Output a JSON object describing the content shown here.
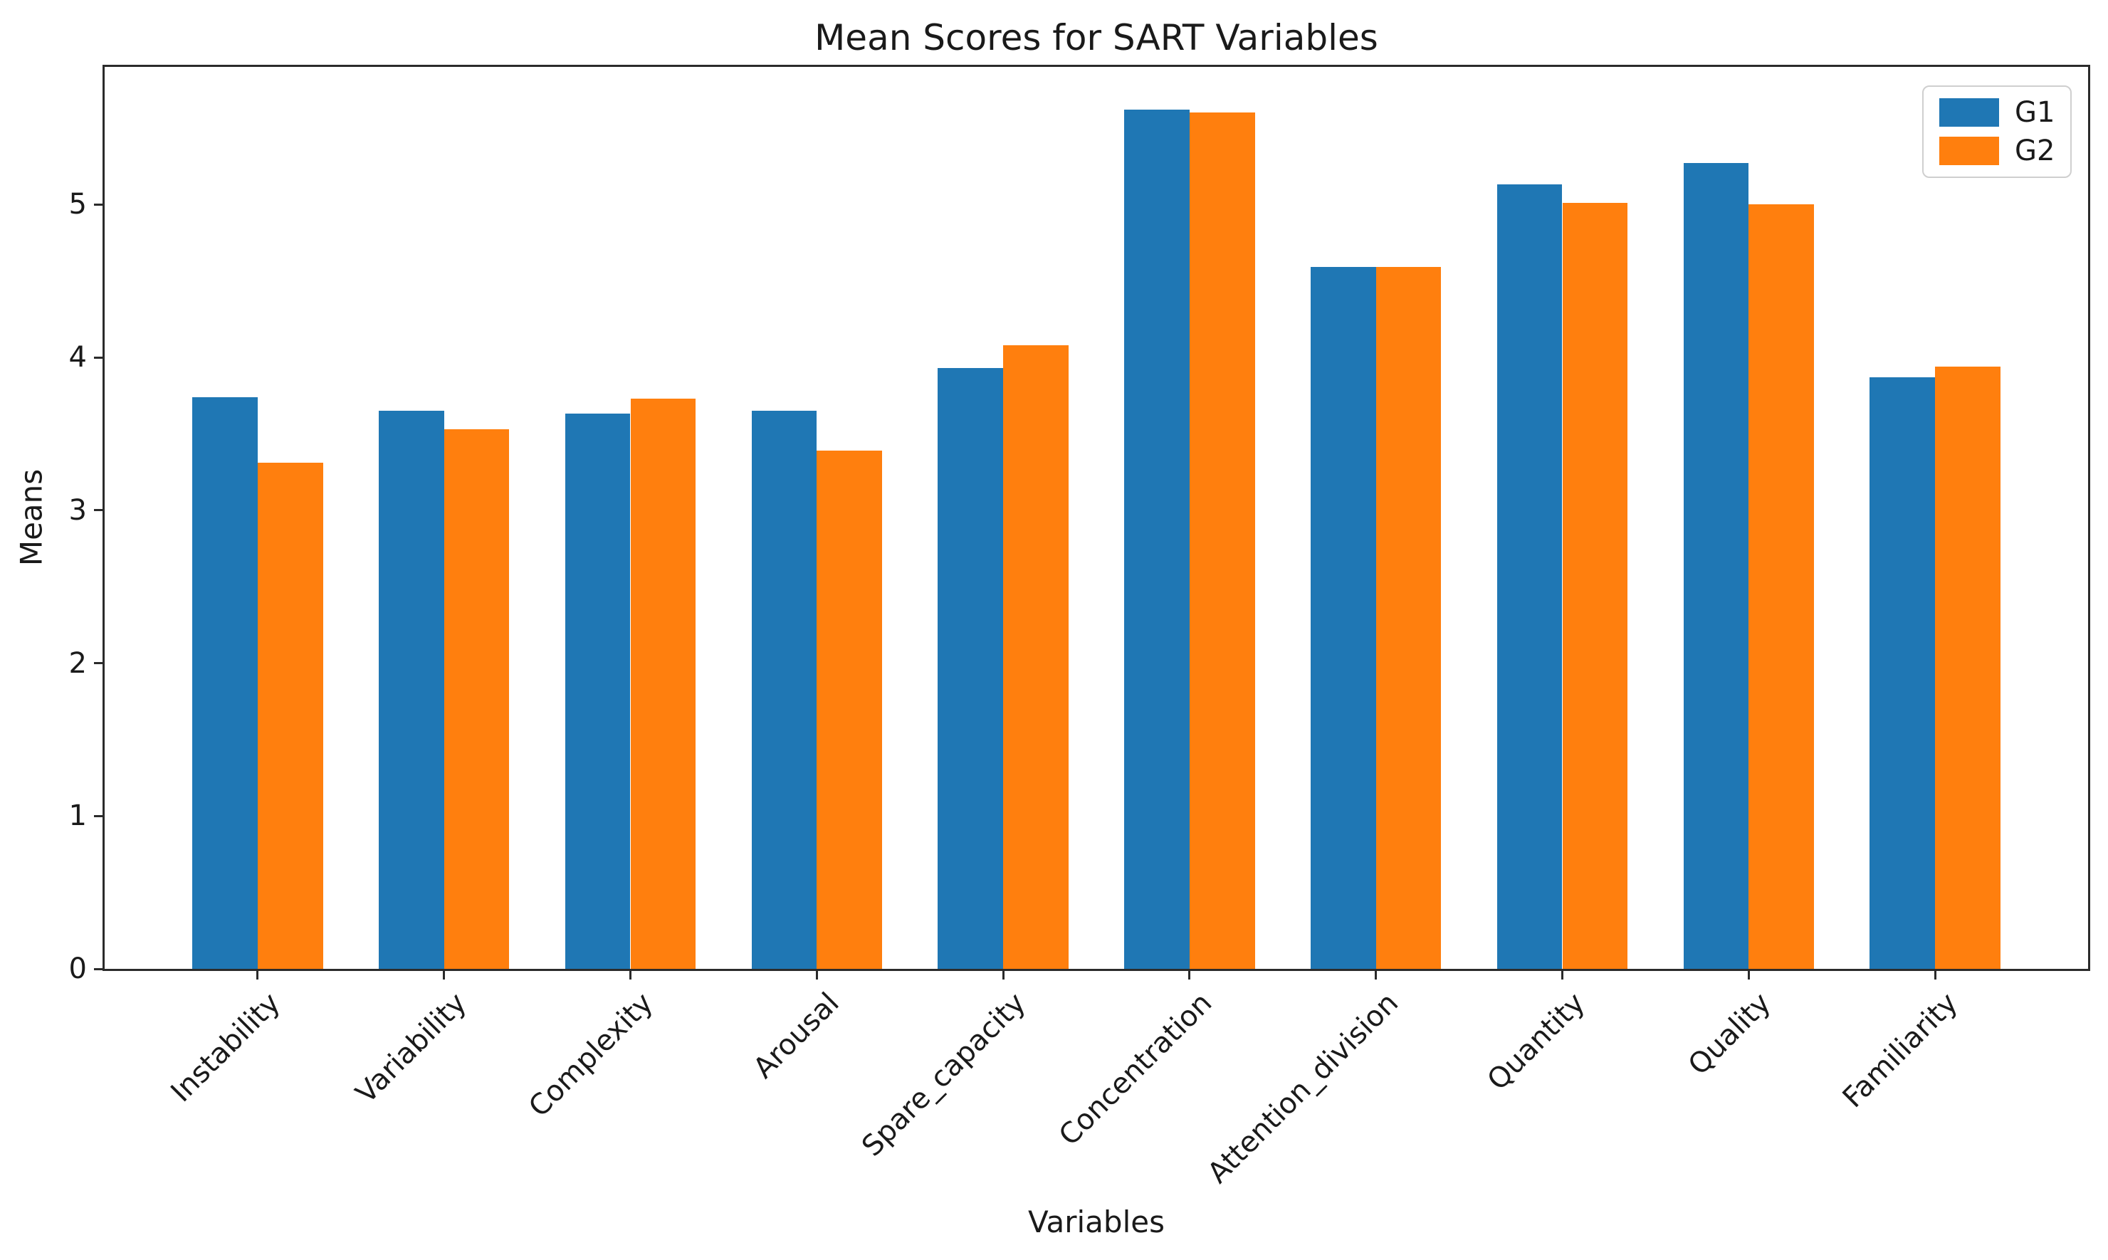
{
  "chart_data": {
    "type": "bar",
    "title": "Mean Scores for SART Variables",
    "xlabel": "Variables",
    "ylabel": "Means",
    "categories": [
      "Instability",
      "Variability",
      "Complexity",
      "Arousal",
      "Spare_capacity",
      "Concentration",
      "Attention_division",
      "Quantity",
      "Quality",
      "Familiarity"
    ],
    "series": [
      {
        "name": "G1",
        "color": "#1f77b4",
        "values": [
          3.74,
          3.65,
          3.63,
          3.65,
          3.93,
          5.62,
          4.59,
          5.13,
          5.27,
          3.87
        ]
      },
      {
        "name": "G2",
        "color": "#ff7f0e",
        "values": [
          3.31,
          3.53,
          3.73,
          3.39,
          4.08,
          5.6,
          4.59,
          5.01,
          5.0,
          3.94
        ]
      }
    ],
    "ylim": [
      0,
      5.9
    ],
    "yticks": [
      0,
      1,
      2,
      3,
      4,
      5
    ],
    "grid": false,
    "legend_position": "upper right",
    "bar_width_fraction": 0.35
  }
}
